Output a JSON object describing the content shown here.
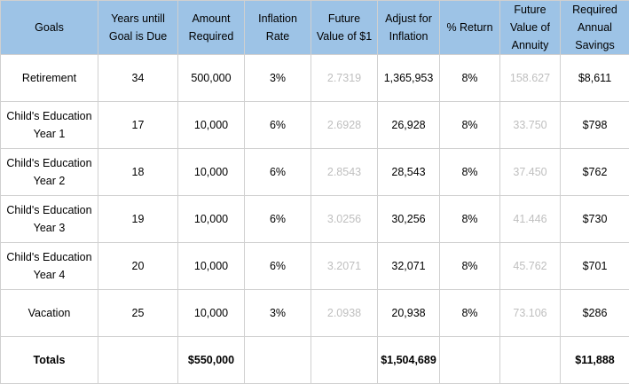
{
  "colors": {
    "header_background": "#9dc3e6",
    "muted_text": "#bfbfbf",
    "grid_line": "#d0d0d0"
  },
  "headers": [
    "Goals",
    "Years untill\nGoal is Due",
    "Amount\nRequired",
    "Inflation\nRate",
    "Future\nValue of $1",
    "Adjust for\nInflation",
    "% Return",
    "Future\nValue of\nAnnuity",
    "Required\nAnnual\nSavings"
  ],
  "rows": [
    {
      "goal": "Retirement",
      "years": "34",
      "amount": "500,000",
      "inflation_rate": "3%",
      "fv_of_1": "2.7319",
      "adjust_for_inflation": "1,365,953",
      "return": "8%",
      "fv_annuity": "158.627",
      "required_savings": "$8,611"
    },
    {
      "goal": "Child's Education\nYear 1",
      "years": "17",
      "amount": "10,000",
      "inflation_rate": "6%",
      "fv_of_1": "2.6928",
      "adjust_for_inflation": "26,928",
      "return": "8%",
      "fv_annuity": "33.750",
      "required_savings": "$798"
    },
    {
      "goal": "Child's Education\nYear 2",
      "years": "18",
      "amount": "10,000",
      "inflation_rate": "6%",
      "fv_of_1": "2.8543",
      "adjust_for_inflation": "28,543",
      "return": "8%",
      "fv_annuity": "37.450",
      "required_savings": "$762"
    },
    {
      "goal": "Child's Education\nYear 3",
      "years": "19",
      "amount": "10,000",
      "inflation_rate": "6%",
      "fv_of_1": "3.0256",
      "adjust_for_inflation": "30,256",
      "return": "8%",
      "fv_annuity": "41.446",
      "required_savings": "$730"
    },
    {
      "goal": "Child's Education\nYear 4",
      "years": "20",
      "amount": "10,000",
      "inflation_rate": "6%",
      "fv_of_1": "3.2071",
      "adjust_for_inflation": "32,071",
      "return": "8%",
      "fv_annuity": "45.762",
      "required_savings": "$701"
    },
    {
      "goal": "Vacation",
      "years": "25",
      "amount": "10,000",
      "inflation_rate": "3%",
      "fv_of_1": "2.0938",
      "adjust_for_inflation": "20,938",
      "return": "8%",
      "fv_annuity": "73.106",
      "required_savings": "$286"
    }
  ],
  "totals": {
    "label": "Totals",
    "amount": "$550,000",
    "adjust_for_inflation": "$1,504,689",
    "required_savings": "$11,888"
  }
}
